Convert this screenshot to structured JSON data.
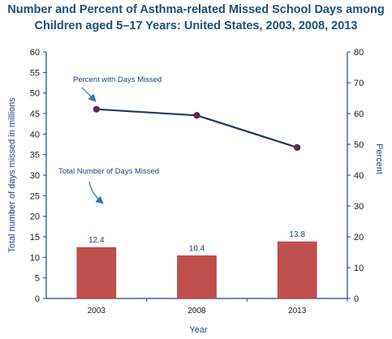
{
  "title": {
    "line1": "Number and Percent of Asthma-related Missed School Days among",
    "line2": "Children aged 5–17 Years: United States, 2003, 2008, 2013"
  },
  "chart_data": {
    "type": "bar+line",
    "xlabel": "Year",
    "categories": [
      "2003",
      "2008",
      "2013"
    ],
    "series": [
      {
        "name": "Total Number of Days Missed",
        "type": "bar",
        "axis": "left",
        "values": [
          12.4,
          10.4,
          13.8
        ],
        "labels": [
          "12.4",
          "10.4",
          "13.8"
        ],
        "color": "#c0504d"
      },
      {
        "name": "Percent with Days Missed",
        "type": "line",
        "axis": "right",
        "values": [
          61.4,
          59.4,
          49.0
        ],
        "color": "#1f3864",
        "marker_color": "#7b1f3a"
      }
    ],
    "ylabel_left": "Total number of days missed  in millions",
    "ylim_left": [
      0,
      60
    ],
    "yticks_left": [
      "0",
      "5",
      "10",
      "15",
      "20",
      "25",
      "30",
      "35",
      "40",
      "45",
      "50",
      "55",
      "60"
    ],
    "ylabel_right": "Percent",
    "ylim_right": [
      0,
      80
    ],
    "yticks_right": [
      "0",
      "10",
      "20",
      "30",
      "40",
      "50",
      "60",
      "70",
      "80"
    ],
    "grid": false,
    "annotations": [
      {
        "text": "Percent with Days Missed",
        "target": "line"
      },
      {
        "text": "Total Number of Days Missed",
        "target": "bars"
      }
    ],
    "colors": {
      "axis": "#1f3f8a",
      "title": "#1f4e79"
    }
  }
}
